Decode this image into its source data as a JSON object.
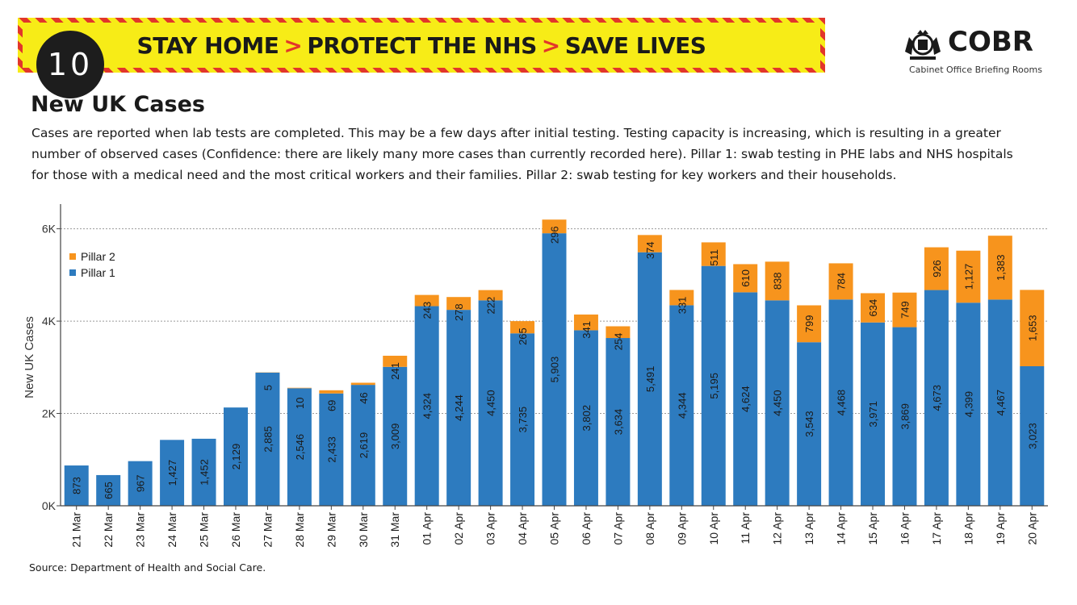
{
  "header": {
    "badge": "10",
    "slogan": [
      "STAY HOME",
      "PROTECT THE NHS",
      "SAVE LIVES"
    ],
    "slogan_separator": ">",
    "brand": "COBR",
    "brand_subtitle": "Cabinet Office Briefing Rooms"
  },
  "title": "New UK Cases",
  "description": "Cases are reported when lab tests are completed. This may be a few days after initial testing. Testing capacity is increasing, which is resulting in a greater number of observed cases (Confidence: there are likely many more cases than currently recorded here). Pillar 1: swab testing in PHE labs and NHS hospitals for those with a medical need and the most critical workers and their families. Pillar 2: swab testing for key workers and their households.",
  "source": "Source: Department of Health and Social Care.",
  "colors": {
    "pillar1": "#2d7bbf",
    "pillar2": "#f7941d",
    "banner_yellow": "#f7ec17",
    "banner_red": "#e2362b"
  },
  "chart_data": {
    "type": "bar",
    "stacked": true,
    "ylabel": "New UK Cases",
    "ylim": [
      0,
      6500
    ],
    "yticks": [
      0,
      2000,
      4000,
      6000
    ],
    "ytick_labels": [
      "0K",
      "2K",
      "4K",
      "6K"
    ],
    "grid": true,
    "legend_position": "top-left",
    "categories": [
      "21 Mar",
      "22 Mar",
      "23 Mar",
      "24 Mar",
      "25 Mar",
      "26 Mar",
      "27 Mar",
      "28 Mar",
      "29 Mar",
      "30 Mar",
      "31 Mar",
      "01 Apr",
      "02 Apr",
      "03 Apr",
      "04 Apr",
      "05 Apr",
      "06 Apr",
      "07 Apr",
      "08 Apr",
      "09 Apr",
      "10 Apr",
      "11 Apr",
      "12 Apr",
      "13 Apr",
      "14 Apr",
      "15 Apr",
      "16 Apr",
      "17 Apr",
      "18 Apr",
      "19 Apr",
      "20 Apr"
    ],
    "series": [
      {
        "name": "Pillar 1",
        "values": [
          873,
          665,
          967,
          1427,
          1452,
          2129,
          2885,
          2546,
          2433,
          2619,
          3009,
          4324,
          4244,
          4450,
          3735,
          5903,
          3802,
          3634,
          5491,
          4344,
          5195,
          4624,
          4450,
          3543,
          4468,
          3971,
          3869,
          4673,
          4399,
          4467,
          3023
        ],
        "labels": [
          "873",
          "665",
          "967",
          "1,427",
          "1,452",
          "2,129",
          "2,885",
          "2,546",
          "2,433",
          "2,619",
          "3,009",
          "4,324",
          "4,244",
          "4,450",
          "3,735",
          "5,903",
          "3,802",
          "3,634",
          "5,491",
          "4,344",
          "5,195",
          "4,624",
          "4,450",
          "3,543",
          "4,468",
          "3,971",
          "3,869",
          "4,673",
          "4,399",
          "4,467",
          "3,023"
        ]
      },
      {
        "name": "Pillar 2",
        "values": [
          0,
          0,
          0,
          0,
          0,
          0,
          5,
          10,
          69,
          46,
          241,
          243,
          278,
          222,
          265,
          296,
          341,
          254,
          374,
          331,
          511,
          610,
          838,
          799,
          784,
          634,
          749,
          926,
          1127,
          1383,
          1653
        ],
        "labels": [
          "",
          "",
          "",
          "",
          "",
          "",
          "5",
          "10",
          "69",
          "46",
          "241",
          "243",
          "278",
          "222",
          "265",
          "296",
          "341",
          "254",
          "374",
          "331",
          "511",
          "610",
          "838",
          "799",
          "784",
          "634",
          "749",
          "926",
          "1,127",
          "1,383",
          "1,653"
        ]
      }
    ]
  }
}
